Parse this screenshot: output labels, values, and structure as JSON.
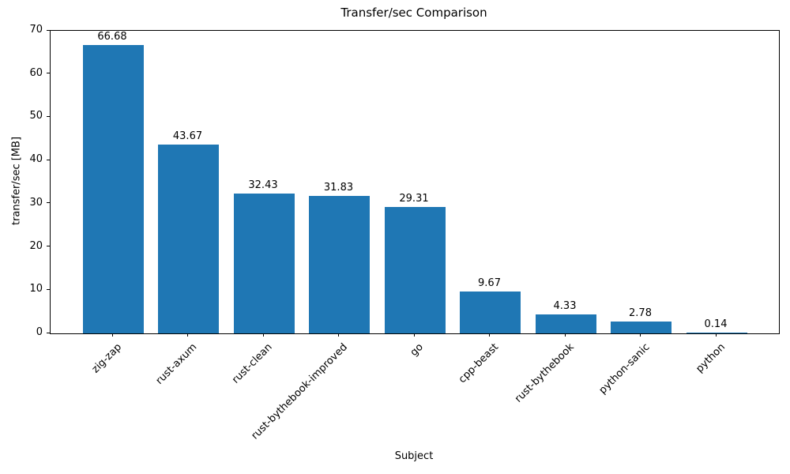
{
  "chart_data": {
    "type": "bar",
    "title": "Transfer/sec Comparison",
    "xlabel": "Subject",
    "ylabel": "transfer/sec [MB]",
    "categories": [
      "zig-zap",
      "rust-axum",
      "rust-clean",
      "rust-bythebook-improved",
      "go",
      "cpp-beast",
      "rust-bythebook",
      "python-sanic",
      "python"
    ],
    "values": [
      66.68,
      43.67,
      32.43,
      31.83,
      29.31,
      9.67,
      4.33,
      2.78,
      0.14
    ],
    "value_labels": [
      "66.68",
      "43.67",
      "32.43",
      "31.83",
      "29.31",
      "9.67",
      "4.33",
      "2.78",
      "0.14"
    ],
    "ylim": [
      0,
      70
    ],
    "ytick_step": 10,
    "yticks": [
      0,
      10,
      20,
      30,
      40,
      50,
      60,
      70
    ],
    "bar_color": "#1f77b4",
    "grid": false,
    "legend_position": "none",
    "xtick_rotation_deg": 45
  }
}
